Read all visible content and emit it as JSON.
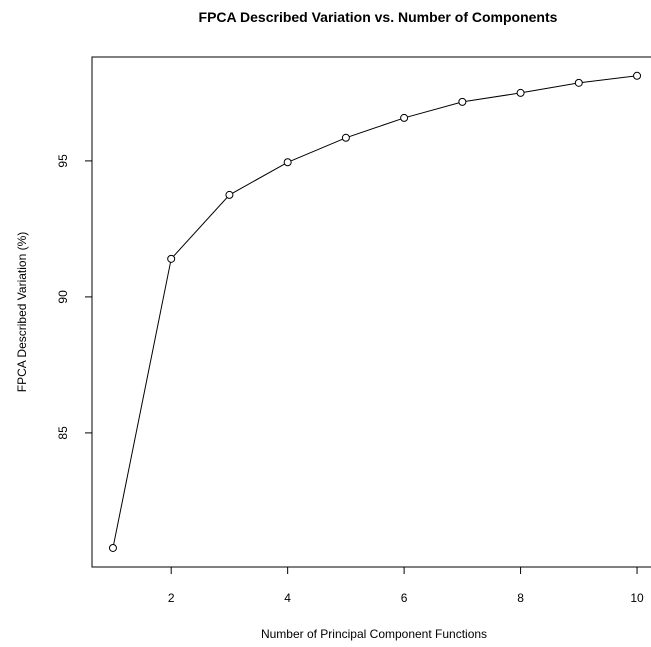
{
  "chart_data": {
    "type": "line",
    "title": "FPCA Described Variation vs. Number of Components",
    "x_label": "Number of Principal Component Functions",
    "y_label": "FPCA Described Variation (%)",
    "x": [
      1,
      2,
      3,
      4,
      5,
      6,
      7,
      8,
      9,
      10
    ],
    "series": [
      {
        "color": "#000000",
        "values": [
          80.77,
          91.4,
          93.75,
          94.95,
          95.85,
          96.58,
          97.17,
          97.5,
          97.87,
          98.13
        ]
      }
    ],
    "xlim": [
      0.64,
      10.36
    ],
    "ylim": [
      80.07,
      98.82
    ],
    "xticks": [
      2,
      4,
      6,
      8,
      10
    ],
    "yticks": [
      85,
      90,
      95
    ],
    "grid": false
  }
}
